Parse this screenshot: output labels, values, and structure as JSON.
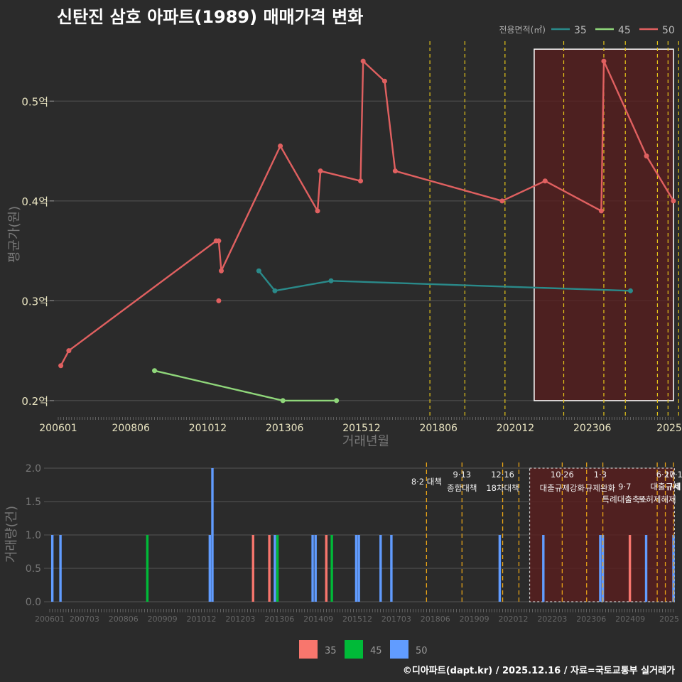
{
  "title": "신탄진 삼호 아파트(1989) 매매가격 변화",
  "footer": "©디아파트(dapt.kr) / 2025.12.16 / 자료=국토교통부 실거래가",
  "colors": {
    "background": "#2b2b2b",
    "grid": "#555555",
    "line35": "#2a8a8a",
    "line45": "#8fd67a",
    "line50": "#e06060",
    "bar35": "#f8766d",
    "bar45": "#00ba38",
    "bar50": "#619cff",
    "policy": "#e6c619",
    "policy_bottom": "#e8a317",
    "highlight_fill": "#5a1e1e",
    "axis_text": "#e8e3c0"
  },
  "price_chart": {
    "legend_title": "전용면적(㎡)",
    "ylabel": "평균가(원)",
    "xlabel": "거래년월",
    "y_ticks": [
      {
        "v": 0.2,
        "label": "0.2억"
      },
      {
        "v": 0.3,
        "label": "0.3억"
      },
      {
        "v": 0.4,
        "label": "0.4억"
      },
      {
        "v": 0.5,
        "label": "0.5억"
      }
    ],
    "ylim": [
      0.185,
      0.555
    ],
    "x_ticks": [
      "200601",
      "200806",
      "201012",
      "201306",
      "201512",
      "201806",
      "202012",
      "202306",
      "2025"
    ],
    "series": [
      {
        "name": "35",
        "color_key": "line35",
        "points": [
          [
            2012.25,
            0.33
          ],
          [
            2012.75,
            0.31
          ],
          [
            2014.5,
            0.32
          ],
          [
            2023.83,
            0.31
          ]
        ]
      },
      {
        "name": "45",
        "color_key": "line45",
        "points": [
          [
            2009.0,
            0.23
          ],
          [
            2013.0,
            0.2
          ],
          [
            2014.67,
            0.2
          ]
        ]
      },
      {
        "name": "50",
        "color_key": "line50",
        "points": [
          [
            2006.08,
            0.235
          ],
          [
            2006.33,
            0.25
          ],
          [
            2010.92,
            0.36
          ],
          [
            2011.0,
            0.36
          ],
          [
            2011.08,
            0.33
          ],
          [
            2012.92,
            0.455
          ],
          [
            2014.08,
            0.39
          ],
          [
            2014.17,
            0.43
          ],
          [
            2015.42,
            0.42
          ],
          [
            2015.5,
            0.54
          ],
          [
            2016.17,
            0.52
          ],
          [
            2016.5,
            0.43
          ],
          [
            2019.83,
            0.4
          ],
          [
            2021.17,
            0.42
          ],
          [
            2022.92,
            0.39
          ],
          [
            2023.0,
            0.54
          ],
          [
            2024.33,
            0.445
          ],
          [
            2025.17,
            0.4
          ]
        ]
      }
    ],
    "isolated_points": [
      {
        "series": "50",
        "x": 2011.0,
        "y": 0.3
      }
    ],
    "policy_lines": [
      2017.58,
      2018.67,
      2019.92,
      2021.75,
      2023.0,
      2023.67,
      2024.67,
      2025.0,
      2025.33
    ],
    "highlight": {
      "x0": 2020.83,
      "x1": 2025.17
    }
  },
  "volume_chart": {
    "ylabel": "거래량(건)",
    "y_ticks": [
      {
        "v": 0,
        "label": "0.0"
      },
      {
        "v": 0.5,
        "label": "0.5"
      },
      {
        "v": 1,
        "label": "1.0"
      },
      {
        "v": 1.5,
        "label": "1.5"
      },
      {
        "v": 2,
        "label": "2.0"
      }
    ],
    "ylim": [
      0,
      2
    ],
    "x_ticks": [
      "200601",
      "200703",
      "200806",
      "200909",
      "201012",
      "201203",
      "201306",
      "201409",
      "201512",
      "201703",
      "201806",
      "201909",
      "202012",
      "202203",
      "202306",
      "202409",
      "2025"
    ],
    "bars": [
      {
        "x": 2006.08,
        "v": 1,
        "s": "50"
      },
      {
        "x": 2006.33,
        "v": 1,
        "s": "50"
      },
      {
        "x": 2009.0,
        "v": 1,
        "s": "45"
      },
      {
        "x": 2010.92,
        "v": 1,
        "s": "50"
      },
      {
        "x": 2011.0,
        "v": 2,
        "s": "50"
      },
      {
        "x": 2012.25,
        "v": 1,
        "s": "35"
      },
      {
        "x": 2012.75,
        "v": 1,
        "s": "35"
      },
      {
        "x": 2012.92,
        "v": 1,
        "s": "50"
      },
      {
        "x": 2013.0,
        "v": 1,
        "s": "45"
      },
      {
        "x": 2014.08,
        "v": 1,
        "s": "50"
      },
      {
        "x": 2014.17,
        "v": 1,
        "s": "50"
      },
      {
        "x": 2014.5,
        "v": 1,
        "s": "35"
      },
      {
        "x": 2014.67,
        "v": 1,
        "s": "45"
      },
      {
        "x": 2015.42,
        "v": 1,
        "s": "50"
      },
      {
        "x": 2015.5,
        "v": 1,
        "s": "50"
      },
      {
        "x": 2016.17,
        "v": 1,
        "s": "50"
      },
      {
        "x": 2016.5,
        "v": 1,
        "s": "50"
      },
      {
        "x": 2019.83,
        "v": 1,
        "s": "50"
      },
      {
        "x": 2021.17,
        "v": 1,
        "s": "50"
      },
      {
        "x": 2022.92,
        "v": 1,
        "s": "50"
      },
      {
        "x": 2023.0,
        "v": 1,
        "s": "50"
      },
      {
        "x": 2023.83,
        "v": 1,
        "s": "35"
      },
      {
        "x": 2024.33,
        "v": 1,
        "s": "50"
      },
      {
        "x": 2025.17,
        "v": 1,
        "s": "50"
      }
    ],
    "policy_lines": [
      2017.58,
      2018.67,
      2019.92,
      2020.42,
      2021.75,
      2022.5,
      2023.0,
      2024.67,
      2024.92,
      2025.17
    ],
    "policy_labels": [
      {
        "x": 2017.58,
        "row": 0,
        "text": "8·2 대책"
      },
      {
        "x": 2018.67,
        "row": -1,
        "text": "9·13"
      },
      {
        "x": 2018.67,
        "row": 1,
        "text": "종합대책"
      },
      {
        "x": 2019.92,
        "row": -1,
        "text": "12·16"
      },
      {
        "x": 2019.92,
        "row": 1,
        "text": "18차대책"
      },
      {
        "x": 2021.75,
        "row": -1,
        "text": "10·26"
      },
      {
        "x": 2021.75,
        "row": 0,
        "text": "대출규제강화"
      },
      {
        "x": 2022.92,
        "row": -1,
        "text": "1·3"
      },
      {
        "x": 2022.92,
        "row": 0,
        "text": "규제완화"
      },
      {
        "x": 2023.67,
        "row": 0,
        "text": "9·7"
      },
      {
        "x": 2023.67,
        "row": 1,
        "text": "특례대출축소"
      },
      {
        "x": 2024.67,
        "row": 1,
        "text": "토허제해제"
      },
      {
        "x": 2024.92,
        "row": -1,
        "text": "6·27"
      },
      {
        "x": 2025.17,
        "row": -1,
        "text": "10·1"
      },
      {
        "x": 2024.92,
        "row": 0,
        "text": "대출규제"
      },
      {
        "x": 2025.17,
        "row": 0,
        "text": "규제"
      }
    ],
    "highlight": {
      "x0": 2020.75,
      "x1": 2025.2
    },
    "legend": [
      {
        "label": "35",
        "color_key": "bar35"
      },
      {
        "label": "45",
        "color_key": "bar45"
      },
      {
        "label": "50",
        "color_key": "bar50"
      }
    ]
  },
  "chart_data": [
    {
      "type": "line",
      "title": "신탄진 삼호 아파트(1989) 매매가격 변화",
      "xlabel": "거래년월",
      "ylabel": "평균가(원)",
      "ylim": [
        0.2,
        0.55
      ],
      "legend_title": "전용면적(㎡)",
      "series": [
        {
          "name": "35",
          "x": [
            "201204",
            "201210",
            "201407",
            "202311"
          ],
          "values": [
            0.33,
            0.31,
            0.32,
            0.31
          ]
        },
        {
          "name": "45",
          "x": [
            "200901",
            "201301",
            "201409"
          ],
          "values": [
            0.23,
            0.2,
            0.2
          ]
        },
        {
          "name": "50",
          "x": [
            "200602",
            "200605",
            "201012",
            "201101",
            "201102",
            "201212",
            "201402",
            "201403",
            "201506",
            "201507",
            "201603",
            "201607",
            "201911",
            "202103",
            "202212",
            "202301",
            "202405",
            "202503"
          ],
          "values": [
            0.235,
            0.25,
            0.36,
            0.36,
            0.33,
            0.455,
            0.39,
            0.43,
            0.42,
            0.54,
            0.52,
            0.43,
            0.4,
            0.42,
            0.39,
            0.54,
            0.445,
            0.4
          ]
        }
      ]
    },
    {
      "type": "bar",
      "ylabel": "거래량(건)",
      "ylim": [
        0,
        2
      ],
      "legend": [
        "35",
        "45",
        "50"
      ]
    }
  ]
}
